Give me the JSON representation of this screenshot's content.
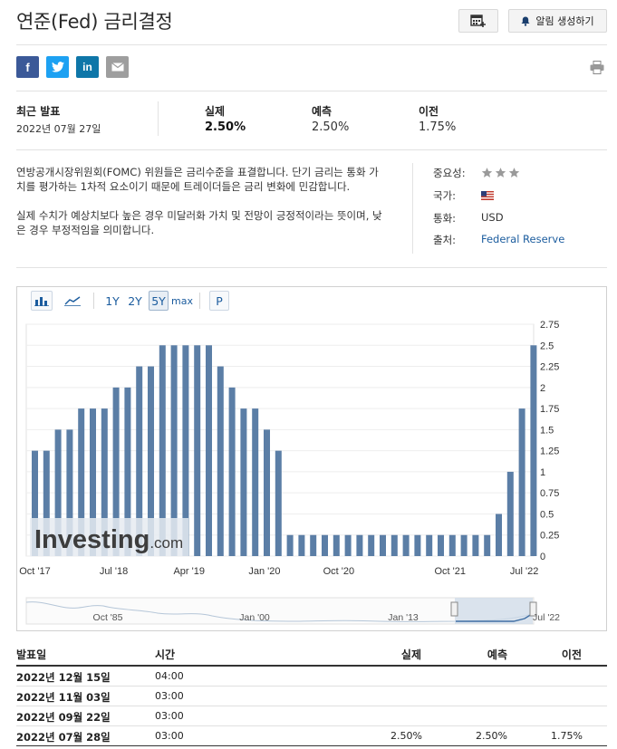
{
  "title": "연준(Fed) 금리결정",
  "header": {
    "alert_label": "알림 생성하기"
  },
  "latest": {
    "label": "최근 발표",
    "date": "2022년 07월 27일",
    "actual_label": "실제",
    "actual": "2.50%",
    "forecast_label": "예측",
    "forecast": "2.50%",
    "previous_label": "이전",
    "previous": "1.75%"
  },
  "description": [
    "연방공개시장위원회(FOMC) 위원들은 금리수준을 표결합니다. 단기 금리는 통화 가치를 평가하는 1차적 요소이기 때문에 트레이더들은 금리 변화에 민감합니다.",
    "실제 수치가 예상치보다 높은 경우 미달러화 가치 및 전망이 긍정적이라는 뜻이며, 낮은 경우 부정적임을 의미합니다."
  ],
  "details": {
    "importance_label": "중요성:",
    "importance_stars": 3,
    "country_label": "국가:",
    "country_icon": "us-flag-icon",
    "currency_label": "통화:",
    "currency": "USD",
    "source_label": "출처:",
    "source": "Federal Reserve"
  },
  "chart_toolbar": {
    "ranges": [
      "1Y",
      "2Y",
      "5Y",
      "max"
    ],
    "selected_range": "5Y",
    "p_label": "P"
  },
  "chart_data": {
    "type": "bar",
    "color": "#5b7ea6",
    "ylim": [
      0,
      2.75
    ],
    "y_ticks": [
      "0",
      "0.25",
      "0.5",
      "0.75",
      "1",
      "1.25",
      "1.5",
      "1.75",
      "2",
      "2.25",
      "2.5",
      "2.75"
    ],
    "x_labels": [
      "Oct '17",
      "Jul '18",
      "Apr '19",
      "Jan '20",
      "Oct '20",
      "Oct '21",
      "Jul '22"
    ],
    "watermark": "Investing.com",
    "values": [
      1.25,
      1.25,
      1.5,
      1.5,
      1.75,
      1.75,
      1.75,
      2.0,
      2.0,
      2.25,
      2.25,
      2.5,
      2.5,
      2.5,
      2.5,
      2.5,
      2.25,
      2.0,
      1.75,
      1.75,
      1.5,
      1.25,
      0.25,
      0.25,
      0.25,
      0.25,
      0.25,
      0.25,
      0.25,
      0.25,
      0.25,
      0.25,
      0.25,
      0.25,
      0.25,
      0.25,
      0.25,
      0.25,
      0.25,
      0.25,
      0.5,
      1.0,
      1.75,
      2.5
    ],
    "navigator_labels": [
      "Oct '85",
      "Jan '00",
      "Jan '13",
      "Jul '22"
    ]
  },
  "table": {
    "headers": {
      "date": "발표일",
      "time": "시간",
      "actual": "실제",
      "forecast": "예측",
      "previous": "이전"
    },
    "rows": [
      {
        "date": "2022년 12월 15일",
        "time": "04:00",
        "actual": "",
        "forecast": "",
        "previous": ""
      },
      {
        "date": "2022년 11월 03일",
        "time": "03:00",
        "actual": "",
        "forecast": "",
        "previous": ""
      },
      {
        "date": "2022년 09월 22일",
        "time": "03:00",
        "actual": "",
        "forecast": "",
        "previous": ""
      },
      {
        "date": "2022년 07월 28일",
        "time": "03:00",
        "actual": "2.50%",
        "forecast": "2.50%",
        "previous": "1.75%"
      }
    ]
  },
  "colors": {
    "link": "#1b5c9e",
    "bar": "#5b7ea6",
    "facebook": "#3b5998",
    "twitter": "#1da1f2",
    "linkedin": "#0e76a8",
    "mail": "#9e9e9e"
  }
}
